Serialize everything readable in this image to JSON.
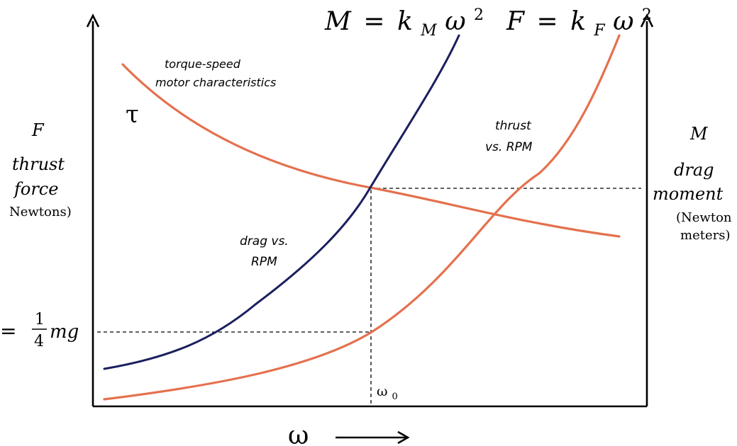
{
  "left_axis": {
    "symbol": "F",
    "line1": "thrust",
    "line2": "force",
    "unit": "Newtons)"
  },
  "right_axis": {
    "symbol": "M",
    "line1": "drag",
    "line2": "moment",
    "unit_line1": "(Newton",
    "unit_line2": "meters)"
  },
  "equations": {
    "drag": {
      "lhs": "M",
      "eq": "=",
      "k": "k",
      "sub": "M",
      "var": "ω",
      "exp": "2"
    },
    "thrust": {
      "lhs": "F",
      "eq": "=",
      "k": "k",
      "sub": "F",
      "var": "ω",
      "exp": "2"
    }
  },
  "curve_labels": {
    "torque_line1": "torque-speed",
    "torque_line2": "motor characteristics",
    "tau": "τ",
    "thrust_line1": "thrust",
    "thrust_line2": "vs. RPM",
    "drag_line1": "drag vs.",
    "drag_line2": "RPM"
  },
  "y_marker": {
    "prefix": "=",
    "num": "1",
    "den": "4",
    "suffix": "mg"
  },
  "x_marker": {
    "symbol": "ω",
    "sub": "0"
  },
  "x_axis": {
    "symbol": "ω"
  },
  "colors": {
    "drag_curve": "#1a1f5e",
    "thrust_curve": "#e4714e",
    "torque_curve": "#e4714e",
    "axes": "#000000"
  }
}
